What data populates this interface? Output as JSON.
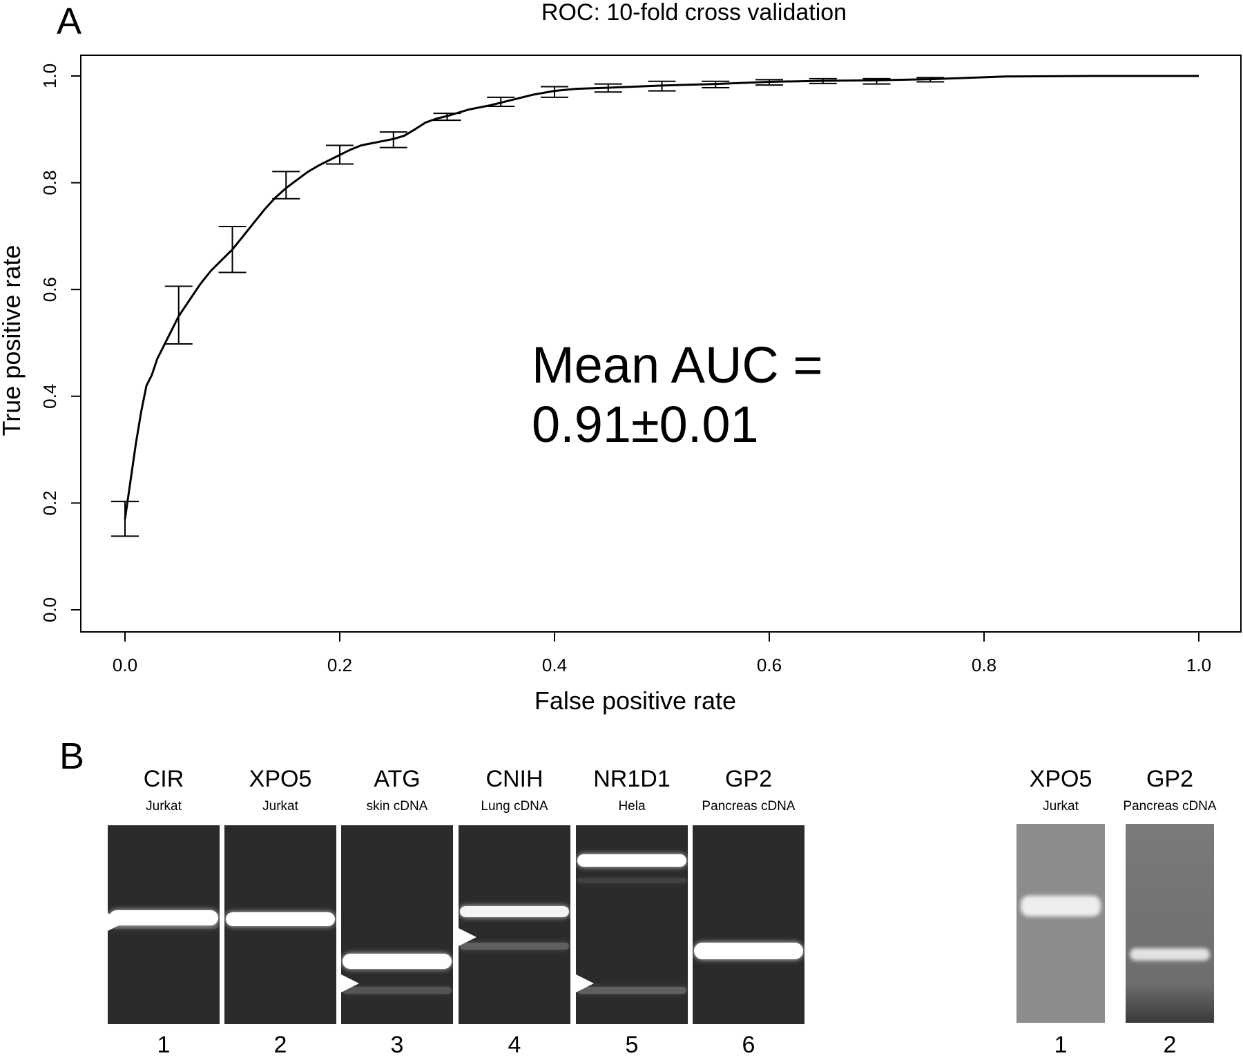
{
  "panel_a": {
    "letter": "A"
  },
  "panel_b": {
    "letter": "B"
  },
  "chart_data": {
    "type": "line",
    "title": "ROC: 10-fold cross validation",
    "xlabel": "False positive rate",
    "ylabel": "True positive rate",
    "xlim": [
      0.0,
      1.0
    ],
    "ylim": [
      0.0,
      1.0
    ],
    "xticks": [
      "0.0",
      "0.2",
      "0.4",
      "0.6",
      "0.8",
      "1.0"
    ],
    "yticks": [
      "0.0",
      "0.2",
      "0.4",
      "0.6",
      "0.8",
      "1.0"
    ],
    "grid": false,
    "annotation": [
      "Mean AUC =",
      "0.91±0.01"
    ],
    "curve": {
      "x": [
        0.0,
        0.005,
        0.01,
        0.015,
        0.02,
        0.025,
        0.03,
        0.04,
        0.05,
        0.06,
        0.07,
        0.08,
        0.09,
        0.1,
        0.11,
        0.12,
        0.13,
        0.14,
        0.15,
        0.16,
        0.17,
        0.18,
        0.19,
        0.2,
        0.21,
        0.22,
        0.23,
        0.24,
        0.25,
        0.26,
        0.27,
        0.28,
        0.29,
        0.3,
        0.32,
        0.34,
        0.35,
        0.36,
        0.38,
        0.4,
        0.42,
        0.45,
        0.5,
        0.55,
        0.6,
        0.65,
        0.7,
        0.75,
        0.82,
        0.9,
        1.0
      ],
      "y": [
        0.17,
        0.24,
        0.31,
        0.37,
        0.42,
        0.44,
        0.47,
        0.51,
        0.55,
        0.58,
        0.61,
        0.635,
        0.655,
        0.675,
        0.7,
        0.725,
        0.75,
        0.772,
        0.79,
        0.805,
        0.82,
        0.832,
        0.842,
        0.852,
        0.862,
        0.87,
        0.874,
        0.878,
        0.882,
        0.888,
        0.9,
        0.913,
        0.92,
        0.925,
        0.937,
        0.945,
        0.95,
        0.955,
        0.965,
        0.972,
        0.976,
        0.978,
        0.982,
        0.985,
        0.989,
        0.991,
        0.992,
        0.994,
        0.999,
        1.0,
        1.0
      ]
    },
    "error_bars": {
      "x": [
        0.0,
        0.05,
        0.1,
        0.15,
        0.2,
        0.25,
        0.3,
        0.35,
        0.4,
        0.45,
        0.5,
        0.55,
        0.6,
        0.65,
        0.7,
        0.75
      ],
      "lower": [
        0.138,
        0.498,
        0.632,
        0.77,
        0.835,
        0.866,
        0.917,
        0.943,
        0.96,
        0.97,
        0.972,
        0.978,
        0.983,
        0.986,
        0.985,
        0.989
      ],
      "upper": [
        0.203,
        0.606,
        0.718,
        0.821,
        0.87,
        0.895,
        0.93,
        0.96,
        0.98,
        0.985,
        0.99,
        0.99,
        0.993,
        0.995,
        0.995,
        0.997
      ]
    }
  },
  "gels_left": {
    "lanes": [
      {
        "gene": "CIR",
        "sample": "Jurkat",
        "number": "1"
      },
      {
        "gene": "XPO5",
        "sample": "Jurkat",
        "number": "2"
      },
      {
        "gene": "ATG",
        "sample": "skin cDNA",
        "number": "3"
      },
      {
        "gene": "CNIH",
        "sample": "Lung cDNA",
        "number": "4"
      },
      {
        "gene": "NR1D1",
        "sample": "Hela",
        "number": "5"
      },
      {
        "gene": "GP2",
        "sample": "Pancreas cDNA",
        "number": "6"
      }
    ]
  },
  "gels_right": {
    "lanes": [
      {
        "gene": "XPO5",
        "sample": "Jurkat",
        "number": "1"
      },
      {
        "gene": "GP2",
        "sample": "Pancreas cDNA",
        "number": "2"
      }
    ]
  }
}
